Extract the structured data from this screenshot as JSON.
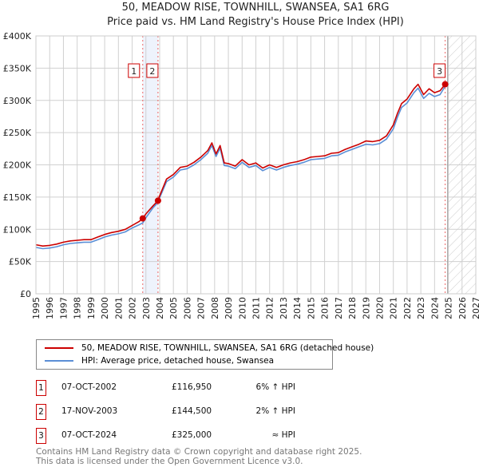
{
  "chart_data": {
    "type": "line",
    "title": "50, MEADOW RISE, TOWNHILL, SWANSEA, SA1 6RG",
    "subtitle": "Price paid vs. HM Land Registry's House Price Index (HPI)",
    "xlim": [
      1995,
      2027
    ],
    "ylim": [
      0,
      400000
    ],
    "x_ticks": [
      "1995",
      "1996",
      "1997",
      "1998",
      "1999",
      "2000",
      "2001",
      "2002",
      "2003",
      "2004",
      "2005",
      "2006",
      "2007",
      "2008",
      "2009",
      "2010",
      "2011",
      "2012",
      "2013",
      "2014",
      "2015",
      "2016",
      "2017",
      "2018",
      "2019",
      "2020",
      "2021",
      "2022",
      "2023",
      "2024",
      "2025",
      "2026",
      "2027"
    ],
    "y_ticks": [
      {
        "v": 0,
        "label": "£0"
      },
      {
        "v": 50000,
        "label": "£50K"
      },
      {
        "v": 100000,
        "label": "£100K"
      },
      {
        "v": 150000,
        "label": "£150K"
      },
      {
        "v": 200000,
        "label": "£200K"
      },
      {
        "v": 250000,
        "label": "£250K"
      },
      {
        "v": 300000,
        "label": "£300K"
      },
      {
        "v": 350000,
        "label": "£350K"
      },
      {
        "v": 400000,
        "label": "£400K"
      }
    ],
    "grid": true,
    "forecast_start": 2024.95,
    "x": [
      1995,
      1995.5,
      1996,
      1996.5,
      1997,
      1997.5,
      1998,
      1998.5,
      1999,
      1999.5,
      2000,
      2000.5,
      2001,
      2001.5,
      2002,
      2002.5,
      2002.77,
      2003,
      2003.5,
      2003.88,
      2004,
      2004.5,
      2005,
      2005.5,
      2006,
      2006.5,
      2007,
      2007.5,
      2007.8,
      2008.1,
      2008.4,
      2008.7,
      2009,
      2009.5,
      2010,
      2010.5,
      2011,
      2011.5,
      2012,
      2012.5,
      2013,
      2013.5,
      2014,
      2014.5,
      2015,
      2015.5,
      2016,
      2016.5,
      2017,
      2017.5,
      2018,
      2018.5,
      2019,
      2019.5,
      2020,
      2020.5,
      2021,
      2021.3,
      2021.6,
      2022,
      2022.5,
      2022.8,
      2023.2,
      2023.6,
      2024,
      2024.4,
      2024.77
    ],
    "series": [
      {
        "name": "50, MEADOW RISE, TOWNHILL, SWANSEA, SA1 6RG (detached house)",
        "color": "#cc0000",
        "values": [
          76000,
          74000,
          75000,
          77000,
          80000,
          82000,
          83000,
          84000,
          84000,
          88000,
          92000,
          95000,
          97000,
          100000,
          106000,
          112000,
          116950,
          124000,
          136000,
          144500,
          152000,
          178000,
          185000,
          196000,
          198000,
          204000,
          212000,
          222000,
          234000,
          217000,
          230000,
          203000,
          202000,
          198000,
          208000,
          200000,
          203000,
          195000,
          200000,
          196000,
          200000,
          203000,
          205000,
          208000,
          212000,
          213000,
          214000,
          218000,
          219000,
          224000,
          228000,
          232000,
          237000,
          236000,
          238000,
          245000,
          262000,
          280000,
          295000,
          302000,
          318000,
          325000,
          309000,
          318000,
          312000,
          315000,
          325000
        ]
      },
      {
        "name": "HPI: Average price, detached house, Swansea",
        "color": "#5b8fd6",
        "values": [
          72000,
          70000,
          71000,
          73000,
          76000,
          78000,
          79000,
          80000,
          80000,
          84000,
          88000,
          91000,
          93000,
          96000,
          102000,
          107000,
          110000,
          118000,
          133000,
          141500,
          149000,
          174000,
          181000,
          192000,
          194000,
          200000,
          208000,
          218000,
          230000,
          213000,
          226000,
          199000,
          198000,
          194000,
          204000,
          196000,
          199000,
          191000,
          196000,
          192000,
          196000,
          199000,
          201000,
          204000,
          208000,
          209000,
          210000,
          214000,
          215000,
          220000,
          224000,
          228000,
          232000,
          231000,
          233000,
          240000,
          256000,
          274000,
          289000,
          296000,
          312000,
          319000,
          303000,
          311000,
          306000,
          309000,
          322000
        ]
      }
    ],
    "sales": [
      {
        "num": "1",
        "date": "07-OCT-2002",
        "x": 2002.77,
        "price": 116950,
        "price_label": "£116,950",
        "hpi": "6% ↑ HPI"
      },
      {
        "num": "2",
        "date": "17-NOV-2003",
        "x": 2003.88,
        "price": 144500,
        "price_label": "£144,500",
        "hpi": "2% ↑ HPI"
      },
      {
        "num": "3",
        "date": "07-OCT-2024",
        "x": 2024.77,
        "price": 325000,
        "price_label": "£325,000",
        "hpi": "≈ HPI"
      }
    ]
  },
  "footer": [
    "Contains HM Land Registry data © Crown copyright and database right 2025.",
    "This data is licensed under the Open Government Licence v3.0."
  ]
}
